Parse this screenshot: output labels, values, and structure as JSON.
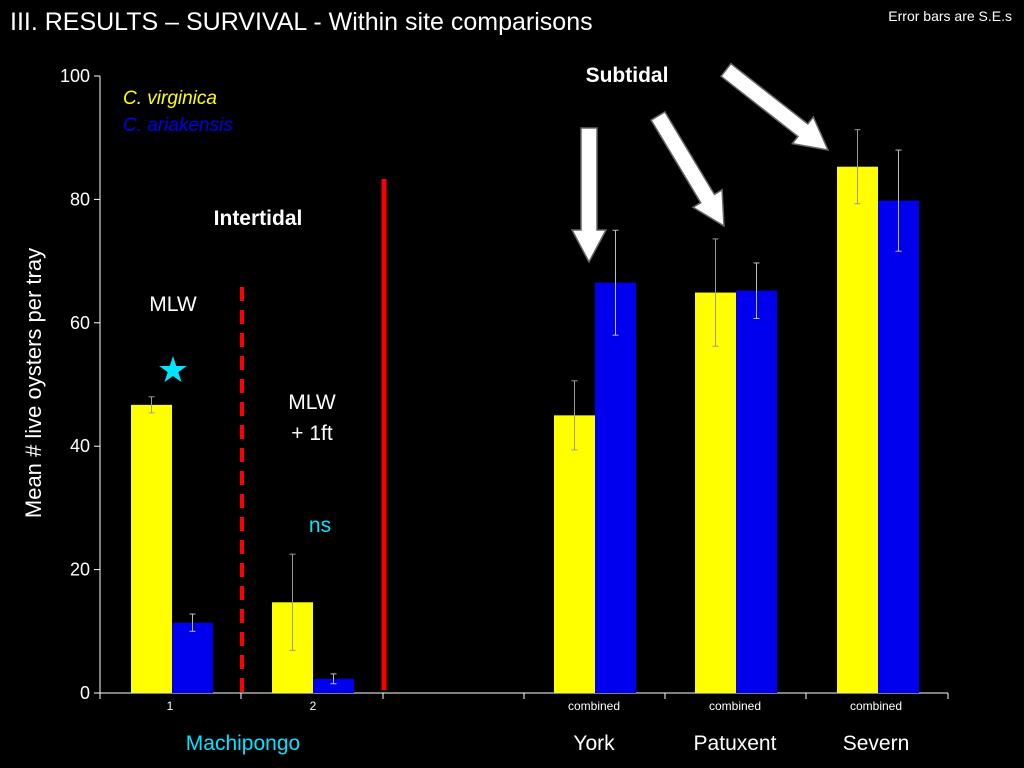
{
  "header": {
    "title": "III.  RESULTS –  SURVIVAL - Within site comparisons",
    "note": "Error bars are S.E.s"
  },
  "colors": {
    "virginica": "#ffff00",
    "ariakensis": "#0000ee",
    "red_divider": "#ff0000",
    "cyan": "#00e5ff",
    "white": "#ffffff"
  },
  "chart_data": {
    "type": "bar",
    "title": "",
    "xlabel": "",
    "ylabel": "Mean # live oysters per tray",
    "ylim": [
      0,
      100
    ],
    "yticks": [
      0,
      20,
      40,
      60,
      80,
      100
    ],
    "grid": false,
    "legend": {
      "placement": "top-left",
      "entries": [
        "C. virginica",
        "C. ariakensis"
      ]
    },
    "groups": [
      {
        "tick": "1",
        "site": "Machipongo",
        "zone": "Intertidal",
        "level": "MLW",
        "significance": "star",
        "values": [
          {
            "series": "C. virginica",
            "mean": 46.7,
            "se": 1.3
          },
          {
            "series": "C. ariakensis",
            "mean": 11.4,
            "se": 1.4
          }
        ]
      },
      {
        "tick": "2",
        "site": "",
        "zone": "Intertidal",
        "level": "MLW + 1ft",
        "significance": "ns",
        "values": [
          {
            "series": "C. virginica",
            "mean": 14.7,
            "se": 7.8
          },
          {
            "series": "C. ariakensis",
            "mean": 2.3,
            "se": 0.8
          }
        ]
      },
      {
        "tick": "combined",
        "site": "York",
        "zone": "Subtidal",
        "values": [
          {
            "series": "C. virginica",
            "mean": 45.0,
            "se": 5.6
          },
          {
            "series": "C. ariakensis",
            "mean": 66.5,
            "se": 8.5
          }
        ]
      },
      {
        "tick": "combined",
        "site": "Patuxent",
        "zone": "Subtidal",
        "values": [
          {
            "series": "C. virginica",
            "mean": 64.9,
            "se": 8.7
          },
          {
            "series": "C. ariakensis",
            "mean": 65.2,
            "se": 4.5
          }
        ]
      },
      {
        "tick": "combined",
        "site": "Severn",
        "zone": "Subtidal",
        "values": [
          {
            "series": "C. virginica",
            "mean": 85.3,
            "se": 6.0
          },
          {
            "series": "C. ariakensis",
            "mean": 79.8,
            "se": 8.2
          }
        ]
      }
    ],
    "annotations": {
      "intertidal": "Intertidal",
      "subtidal": "Subtidal",
      "mlw": "MLW",
      "mlw_1ft_line1": "MLW",
      "mlw_1ft_line2": "+ 1ft",
      "ns": "ns",
      "star": "★"
    }
  }
}
